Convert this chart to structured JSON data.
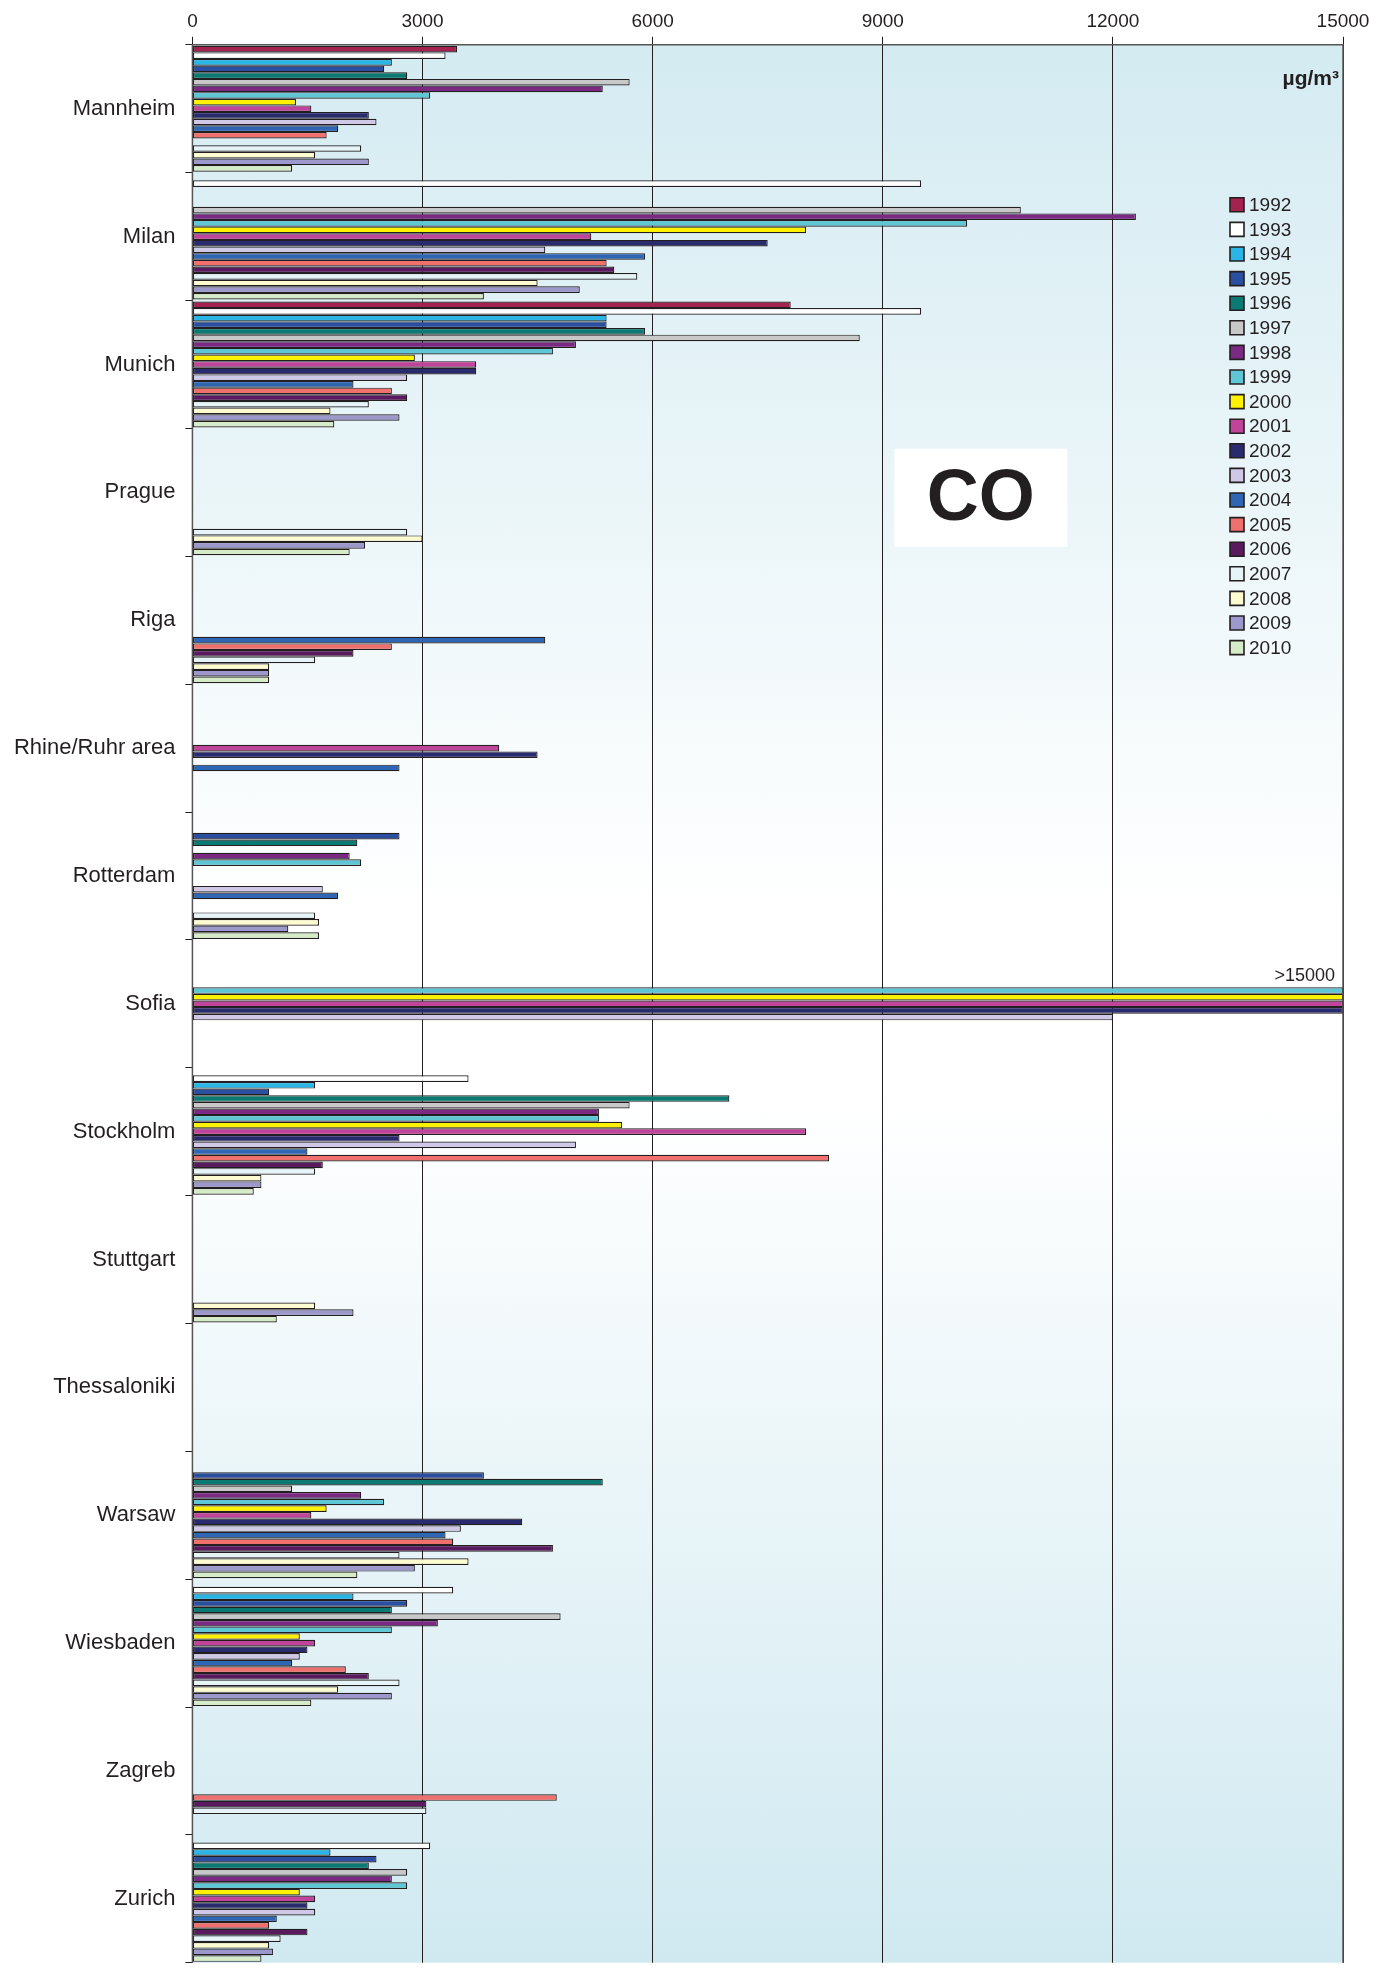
{
  "chart_data": {
    "type": "bar",
    "orientation": "horizontal",
    "title": "CO",
    "xlabel": "µg/m³",
    "categories": [
      "Mannheim",
      "Milan",
      "Munich",
      "Prague",
      "Riga",
      "Rhine/Ruhr area",
      "Rotterdam",
      "Sofia",
      "Stockholm",
      "Stuttgart",
      "Thessaloniki",
      "Warsaw",
      "Wiesbaden",
      "Zagreb",
      "Zurich"
    ],
    "xlim": [
      0,
      15000
    ],
    "xticks": [
      0,
      3000,
      6000,
      9000,
      12000,
      15000
    ],
    "grid": "x",
    "legend": "top right",
    "annotations": [
      {
        "text": ">15000",
        "x": 15000,
        "y": "Sofia"
      }
    ],
    "series": [
      {
        "name": "1992",
        "color": "#a3224f",
        "values": [
          3450,
          null,
          7800,
          null,
          null,
          null,
          null,
          null,
          null,
          null,
          null,
          null,
          null,
          null,
          null
        ]
      },
      {
        "name": "1993",
        "color": "#ffffff",
        "values": [
          3300,
          9500,
          9500,
          null,
          null,
          null,
          null,
          null,
          3600,
          null,
          null,
          null,
          3400,
          null,
          3100
        ]
      },
      {
        "name": "1994",
        "color": "#29b6e6",
        "values": [
          2600,
          null,
          5400,
          null,
          null,
          null,
          null,
          null,
          1600,
          null,
          null,
          null,
          2100,
          null,
          1800
        ]
      },
      {
        "name": "1995",
        "color": "#2b4fa0",
        "values": [
          2500,
          null,
          5400,
          null,
          null,
          null,
          2700,
          null,
          1000,
          null,
          null,
          3800,
          2800,
          null,
          2400
        ]
      },
      {
        "name": "1996",
        "color": "#0a7a72",
        "values": [
          2800,
          null,
          5900,
          null,
          null,
          null,
          2150,
          null,
          7000,
          null,
          null,
          5350,
          2600,
          null,
          2300
        ]
      },
      {
        "name": "1997",
        "color": "#c8c8c8",
        "values": [
          5700,
          10800,
          8700,
          null,
          null,
          null,
          null,
          null,
          5700,
          null,
          null,
          1300,
          4800,
          null,
          2800
        ]
      },
      {
        "name": "1998",
        "color": "#7b2a83",
        "values": [
          5350,
          12300,
          5000,
          null,
          null,
          null,
          2050,
          null,
          5300,
          null,
          null,
          2200,
          3200,
          null,
          2600
        ]
      },
      {
        "name": "1999",
        "color": "#5fc6d6",
        "values": [
          3100,
          10100,
          4700,
          null,
          null,
          null,
          2200,
          15000,
          5300,
          null,
          null,
          2500,
          2600,
          null,
          2800
        ]
      },
      {
        "name": "2000",
        "color": "#fff200",
        "values": [
          1350,
          8000,
          2900,
          null,
          null,
          null,
          null,
          15000,
          5600,
          null,
          null,
          1750,
          1400,
          null,
          1400
        ]
      },
      {
        "name": "2001",
        "color": "#c0459a",
        "values": [
          1550,
          5200,
          3700,
          null,
          null,
          4000,
          null,
          15000,
          8000,
          null,
          null,
          1550,
          1600,
          null,
          1600
        ]
      },
      {
        "name": "2002",
        "color": "#2a2a6e",
        "values": [
          2300,
          7500,
          3700,
          null,
          null,
          4500,
          null,
          15000,
          2700,
          null,
          null,
          4300,
          1500,
          null,
          1500
        ]
      },
      {
        "name": "2003",
        "color": "#cfc8e6",
        "values": [
          2400,
          4600,
          2800,
          null,
          null,
          null,
          1700,
          12000,
          5000,
          null,
          null,
          3500,
          1400,
          null,
          1600
        ]
      },
      {
        "name": "2004",
        "color": "#2f66b3",
        "values": [
          1900,
          5900,
          2100,
          null,
          4600,
          2700,
          1900,
          null,
          1500,
          null,
          null,
          3300,
          1300,
          null,
          1100
        ]
      },
      {
        "name": "2005",
        "color": "#f0706e",
        "values": [
          1750,
          5400,
          2600,
          null,
          2600,
          null,
          null,
          null,
          8300,
          null,
          null,
          3400,
          2000,
          4750,
          1000
        ]
      },
      {
        "name": "2006",
        "color": "#5a1a5e",
        "values": [
          null,
          5500,
          2800,
          null,
          2100,
          null,
          null,
          null,
          1700,
          null,
          null,
          4700,
          2300,
          3050,
          1500
        ]
      },
      {
        "name": "2007",
        "color": "#e6f4f8",
        "values": [
          2200,
          5800,
          2300,
          2800,
          1600,
          null,
          1600,
          null,
          1600,
          null,
          null,
          2700,
          2700,
          3050,
          1150
        ]
      },
      {
        "name": "2008",
        "color": "#fdfbd0",
        "values": [
          1600,
          4500,
          1800,
          3000,
          1000,
          null,
          1650,
          null,
          900,
          1600,
          null,
          3600,
          1900,
          null,
          1000
        ]
      },
      {
        "name": "2009",
        "color": "#9d98cc",
        "values": [
          2300,
          5050,
          2700,
          2250,
          1000,
          null,
          1250,
          null,
          900,
          2100,
          null,
          2900,
          2600,
          null,
          1050
        ]
      },
      {
        "name": "2010",
        "color": "#d6ecc8",
        "values": [
          1300,
          3800,
          1850,
          2050,
          1000,
          null,
          1650,
          null,
          800,
          1100,
          null,
          2150,
          1550,
          null,
          900
        ]
      }
    ]
  }
}
